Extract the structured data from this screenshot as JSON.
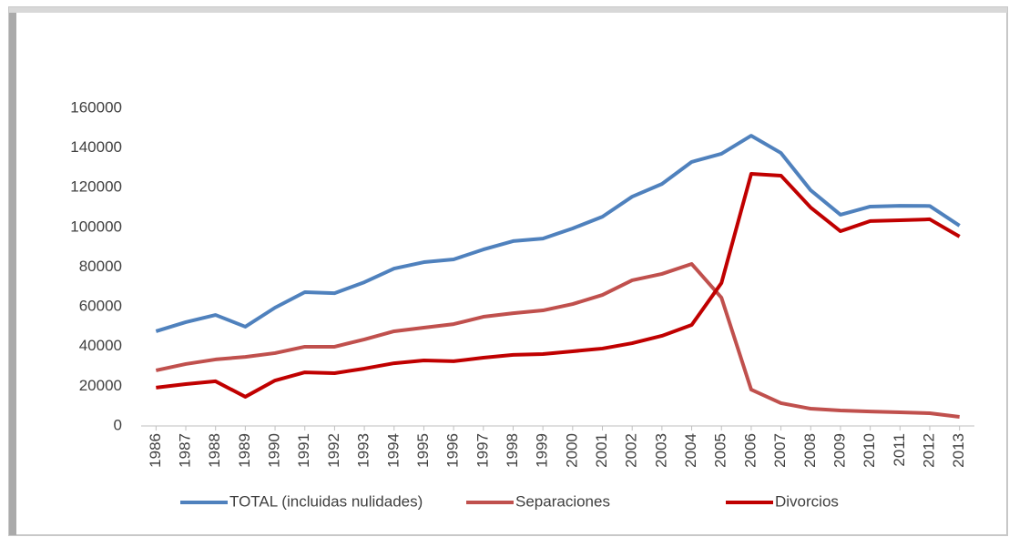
{
  "chart_data": {
    "type": "line",
    "categories": [
      "1986",
      "1987",
      "1988",
      "1989",
      "1990",
      "1991",
      "1992",
      "1993",
      "1994",
      "1995",
      "1996",
      "1997",
      "1998",
      "1999",
      "2000",
      "2001",
      "2002",
      "2003",
      "2004",
      "2005",
      "2006",
      "2007",
      "2008",
      "2009",
      "2010",
      "2011",
      "2012",
      "2013"
    ],
    "series": [
      {
        "name": "TOTAL (incluidas nulidades)",
        "color": "#4f81bd",
        "values": [
          47700,
          52300,
          55900,
          50000,
          59600,
          67400,
          66900,
          72400,
          79300,
          82500,
          83900,
          88900,
          93100,
          94400,
          99500,
          105400,
          115500,
          121900,
          133000,
          137100,
          146200,
          137500,
          118700,
          106400,
          110500,
          110900,
          110800,
          100900
        ]
      },
      {
        "name": "Separaciones",
        "color": "#c0504d",
        "values": [
          28000,
          31200,
          33500,
          34800,
          36700,
          39900,
          39900,
          43600,
          47700,
          49500,
          51300,
          55000,
          56800,
          58200,
          61400,
          66000,
          73400,
          76600,
          81600,
          64600,
          18300,
          11500,
          8700,
          7800,
          7300,
          6900,
          6400,
          4600
        ]
      },
      {
        "name": "Divorcios",
        "color": "#c00000",
        "values": [
          19300,
          21100,
          22500,
          14700,
          22900,
          27000,
          26600,
          28900,
          31600,
          33000,
          32600,
          34400,
          35800,
          36200,
          37600,
          39000,
          41700,
          45400,
          50900,
          72000,
          127000,
          126100,
          110000,
          98100,
          103200,
          103600,
          104100,
          95400
        ]
      }
    ],
    "ylim": [
      0,
      160000
    ],
    "yticks": [
      0,
      20000,
      40000,
      60000,
      80000,
      100000,
      120000,
      140000,
      160000
    ],
    "legend": "bottom"
  }
}
